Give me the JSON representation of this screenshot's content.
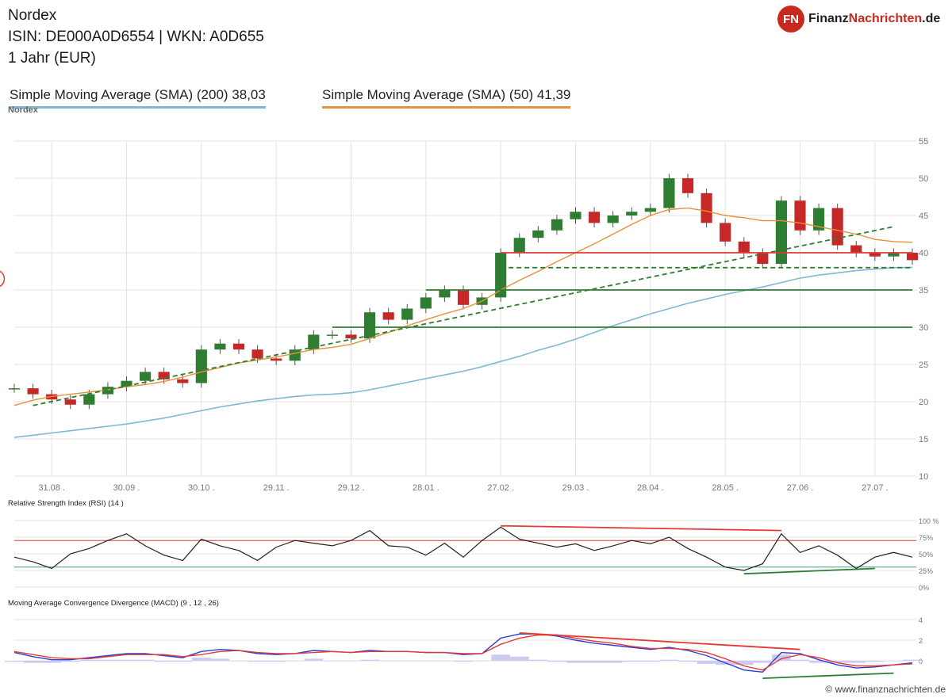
{
  "header": {
    "title": "Nordex",
    "isin_line": "ISIN: DE000A0D6554   | WKN: A0D655",
    "period": "1 Jahr (EUR)"
  },
  "legend": {
    "sma200": "Simple Moving Average (SMA) (200) 38,03",
    "sma50": "Simple Moving Average (SMA) (50) 41,39"
  },
  "instrument_label": "Nordex",
  "logo": {
    "badge": "FN",
    "name_part1": "Finanz",
    "name_part2": "Nachrichten",
    "suffix": ".de"
  },
  "watermark": "© www.finanznachrichten.de",
  "colors": {
    "sma200": "#7fb8d6",
    "sma50": "#e8903a",
    "up": "#2e7d32",
    "down": "#c62828"
  },
  "chart_data": [
    {
      "type": "line",
      "panel": "price",
      "ylim": [
        10,
        55
      ],
      "yticks": [
        10,
        15,
        20,
        25,
        30,
        35,
        40,
        45,
        50,
        55
      ],
      "xticks": [
        "31.08 .",
        "30.09 .",
        "30.10 .",
        "29.11 .",
        "29.12 .",
        "28.01 .",
        "27.02 .",
        "29.03 .",
        "28.04 .",
        "28.05 .",
        "27.06 .",
        "27.07 ."
      ],
      "x": [
        "17.08",
        "24.08",
        "31.08",
        "07.09",
        "14.09",
        "21.09",
        "30.09",
        "07.10",
        "14.10",
        "21.10",
        "30.10",
        "06.11",
        "13.11",
        "20.11",
        "29.11",
        "06.12",
        "13.12",
        "20.12",
        "29.12",
        "05.01",
        "12.01",
        "19.01",
        "28.01",
        "04.02",
        "11.02",
        "18.02",
        "27.02",
        "06.03",
        "13.03",
        "20.03",
        "29.03",
        "05.04",
        "12.04",
        "19.04",
        "28.04",
        "05.05",
        "12.05",
        "19.05",
        "28.05",
        "04.06",
        "11.06",
        "18.06",
        "27.06",
        "04.07",
        "11.07",
        "18.07",
        "27.07",
        "03.08",
        "10.08"
      ],
      "series": [
        {
          "values": [
            21.8,
            21.0,
            20.3,
            19.6,
            21.0,
            22.0,
            22.8,
            24.0,
            23.0,
            22.5,
            27.0,
            27.8,
            27.0,
            25.8,
            25.5,
            27.0,
            29.0,
            29.0,
            28.5,
            32.0,
            31.0,
            32.5,
            34.0,
            35.0,
            33.0,
            34.0,
            40.0,
            42.0,
            43.0,
            44.5,
            45.5,
            44.0,
            45.0,
            45.5,
            46.0,
            50.0,
            48.0,
            44.0,
            41.5,
            40.0,
            38.5,
            47.0,
            43.0,
            46.0,
            41.0,
            40.0,
            39.5,
            40.0,
            39.0
          ]
        }
      ],
      "sma50": [
        19.5,
        20.2,
        20.7,
        21.0,
        21.3,
        21.6,
        22.0,
        22.3,
        22.7,
        23.3,
        24.0,
        24.6,
        25.2,
        25.6,
        26.0,
        26.5,
        27.0,
        27.3,
        27.7,
        28.5,
        29.3,
        30.2,
        31.0,
        31.8,
        32.5,
        33.5,
        35.0,
        36.3,
        37.5,
        38.8,
        40.0,
        41.2,
        42.5,
        43.8,
        45.0,
        45.8,
        46.0,
        45.6,
        45.0,
        44.7,
        44.3,
        44.3,
        44.0,
        43.5,
        43.0,
        42.5,
        41.8,
        41.5,
        41.4
      ],
      "sma200": [
        15.2,
        15.5,
        15.8,
        16.1,
        16.4,
        16.7,
        17.0,
        17.4,
        17.8,
        18.3,
        18.8,
        19.3,
        19.7,
        20.1,
        20.4,
        20.7,
        20.9,
        21.0,
        21.2,
        21.6,
        22.1,
        22.6,
        23.1,
        23.6,
        24.1,
        24.7,
        25.4,
        26.1,
        26.9,
        27.6,
        28.4,
        29.3,
        30.2,
        31.0,
        31.8,
        32.5,
        33.2,
        33.8,
        34.4,
        34.9,
        35.4,
        36.0,
        36.6,
        37.0,
        37.3,
        37.6,
        37.8,
        38.0,
        38.03
      ],
      "lines": [
        {
          "kind": "trendline",
          "color": "green",
          "style": "dashed",
          "from": [
            "24.08",
            19.5
          ],
          "to": [
            "03.08",
            43.5
          ]
        },
        {
          "kind": "support",
          "color": "green",
          "style": "dashed",
          "from": [
            "27.02",
            38.0
          ],
          "to": [
            "10.08",
            38.0
          ]
        },
        {
          "kind": "resistance",
          "color": "red",
          "from": [
            "27.02",
            40.0
          ],
          "to": [
            "10.08",
            40.0
          ]
        },
        {
          "kind": "support",
          "color": "green",
          "from": [
            "28.01",
            35.0
          ],
          "to": [
            "10.08",
            35.0
          ]
        },
        {
          "kind": "support",
          "color": "green",
          "from": [
            "20.12",
            30.0
          ],
          "to": [
            "10.08",
            30.0
          ]
        }
      ],
      "annotations": [
        {
          "kind": "circle",
          "x": "20.02",
          "y": 36.5,
          "color": "red"
        }
      ]
    },
    {
      "type": "line",
      "panel": "rsi",
      "title": "Relative Strength Index (RSI) (14 )",
      "ylim": [
        0,
        100
      ],
      "yticks": [
        "0%",
        "25%",
        "50%",
        "75%",
        "100 %"
      ],
      "levels": [
        30,
        70
      ],
      "x": [
        "17.08",
        "24.08",
        "31.08",
        "07.09",
        "14.09",
        "21.09",
        "30.09",
        "07.10",
        "14.10",
        "21.10",
        "30.10",
        "06.11",
        "13.11",
        "20.11",
        "29.11",
        "06.12",
        "13.12",
        "20.12",
        "29.12",
        "05.01",
        "12.01",
        "19.01",
        "28.01",
        "04.02",
        "11.02",
        "18.02",
        "27.02",
        "06.03",
        "13.03",
        "20.03",
        "29.03",
        "05.04",
        "12.04",
        "19.04",
        "28.04",
        "05.05",
        "12.05",
        "19.05",
        "28.05",
        "04.06",
        "11.06",
        "18.06",
        "27.06",
        "04.07",
        "11.07",
        "18.07",
        "27.07",
        "03.08",
        "10.08"
      ],
      "series": [
        {
          "values": [
            45,
            38,
            28,
            50,
            58,
            70,
            80,
            62,
            48,
            40,
            72,
            62,
            55,
            40,
            60,
            70,
            66,
            62,
            70,
            85,
            62,
            60,
            48,
            66,
            45,
            70,
            90,
            72,
            66,
            60,
            65,
            55,
            62,
            70,
            65,
            75,
            58,
            45,
            30,
            25,
            35,
            80,
            52,
            62,
            48,
            28,
            45,
            52,
            45
          ]
        }
      ],
      "lines": [
        {
          "kind": "divergence",
          "color": "red",
          "from": [
            "27.02",
            92
          ],
          "to": [
            "18.06",
            85
          ]
        },
        {
          "kind": "divergence",
          "color": "green",
          "from": [
            "04.06",
            20
          ],
          "to": [
            "27.07",
            28
          ]
        }
      ]
    },
    {
      "type": "line",
      "panel": "macd",
      "title": "Moving Average Convergence Divergence (MACD) (9 , 12 , 26)",
      "ylim": [
        -2,
        4
      ],
      "yticks": [
        0,
        2,
        4
      ],
      "x": [
        "17.08",
        "24.08",
        "31.08",
        "07.09",
        "14.09",
        "21.09",
        "30.09",
        "07.10",
        "14.10",
        "21.10",
        "30.10",
        "06.11",
        "13.11",
        "20.11",
        "29.11",
        "06.12",
        "13.12",
        "20.12",
        "29.12",
        "05.01",
        "12.01",
        "19.01",
        "28.01",
        "04.02",
        "11.02",
        "18.02",
        "27.02",
        "06.03",
        "13.03",
        "20.03",
        "29.03",
        "05.04",
        "12.04",
        "19.04",
        "28.04",
        "05.05",
        "12.05",
        "19.05",
        "28.05",
        "04.06",
        "11.06",
        "18.06",
        "27.06",
        "04.07",
        "11.07",
        "18.07",
        "27.07",
        "03.08",
        "10.08"
      ],
      "series": [
        {
          "values": [
            0.8,
            0.4,
            0.1,
            0.1,
            0.3,
            0.5,
            0.7,
            0.7,
            0.5,
            0.3,
            0.9,
            1.1,
            1.0,
            0.7,
            0.6,
            0.7,
            1.0,
            0.9,
            0.8,
            1.0,
            0.9,
            0.9,
            0.8,
            0.8,
            0.6,
            0.7,
            2.2,
            2.6,
            2.6,
            2.4,
            2.0,
            1.7,
            1.5,
            1.3,
            1.1,
            1.3,
            1.0,
            0.5,
            -0.2,
            -0.9,
            -1.1,
            0.8,
            0.7,
            0.1,
            -0.4,
            -0.7,
            -0.6,
            -0.4,
            -0.2
          ]
        },
        {
          "values": [
            0.9,
            0.6,
            0.3,
            0.2,
            0.2,
            0.4,
            0.6,
            0.6,
            0.6,
            0.4,
            0.6,
            0.9,
            1.0,
            0.8,
            0.7,
            0.7,
            0.8,
            0.9,
            0.8,
            0.9,
            0.9,
            0.9,
            0.8,
            0.8,
            0.7,
            0.7,
            1.6,
            2.2,
            2.5,
            2.5,
            2.2,
            1.9,
            1.7,
            1.4,
            1.2,
            1.2,
            1.1,
            0.8,
            0.2,
            -0.5,
            -0.9,
            0.2,
            0.6,
            0.3,
            -0.2,
            -0.5,
            -0.5,
            -0.4,
            -0.3
          ]
        }
      ],
      "lines": [
        {
          "kind": "divergence",
          "color": "red",
          "from": [
            "06.03",
            2.7
          ],
          "to": [
            "27.06",
            1.1
          ]
        },
        {
          "kind": "divergence",
          "color": "green",
          "from": [
            "11.06",
            -1.7
          ],
          "to": [
            "03.08",
            -1.2
          ]
        }
      ]
    }
  ]
}
